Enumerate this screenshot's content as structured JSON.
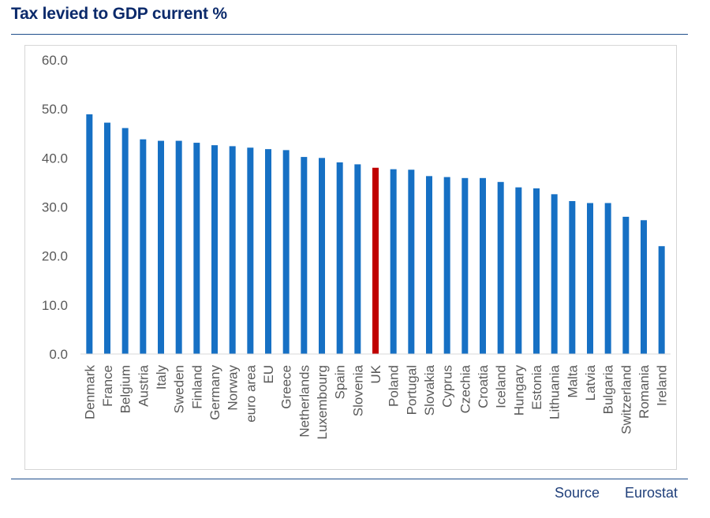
{
  "title": "Tax levied to GDP current %",
  "footer": {
    "source_label": "Source",
    "source_value": "Eurostat"
  },
  "colors": {
    "bar": "#1670c4",
    "highlight": "#c00000",
    "axis_text": "#595959",
    "gridline": "#d9d9d9"
  },
  "chart_data": {
    "type": "bar",
    "title": "",
    "xlabel": "",
    "ylabel": "",
    "ylim": [
      0,
      60
    ],
    "yticks": [
      "0.0",
      "10.0",
      "20.0",
      "30.0",
      "40.0",
      "50.0",
      "60.0"
    ],
    "grid": false,
    "highlight_category": "UK",
    "categories": [
      "Denmark",
      "France",
      "Belgium",
      "Austria",
      "Italy",
      "Sweden",
      "Finland",
      "Germany",
      "Norway",
      "euro area",
      "EU",
      "Greece",
      "Netherlands",
      "Luxembourg",
      "Spain",
      "Slovenia",
      "UK",
      "Poland",
      "Portugal",
      "Slovakia",
      "Cyprus",
      "Czechia",
      "Croatia",
      "Iceland",
      "Hungary",
      "Estonia",
      "Lithuania",
      "Malta",
      "Latvia",
      "Bulgaria",
      "Switzerland",
      "Romania",
      "Ireland"
    ],
    "values": [
      48.9,
      47.2,
      46.1,
      43.8,
      43.5,
      43.5,
      43.1,
      42.6,
      42.4,
      42.1,
      41.8,
      41.6,
      40.2,
      40.0,
      39.1,
      38.7,
      38.0,
      37.7,
      37.6,
      36.3,
      36.1,
      35.9,
      35.9,
      35.1,
      34.0,
      33.8,
      32.6,
      31.2,
      30.8,
      30.8,
      28.0,
      27.3,
      22.0
    ]
  }
}
